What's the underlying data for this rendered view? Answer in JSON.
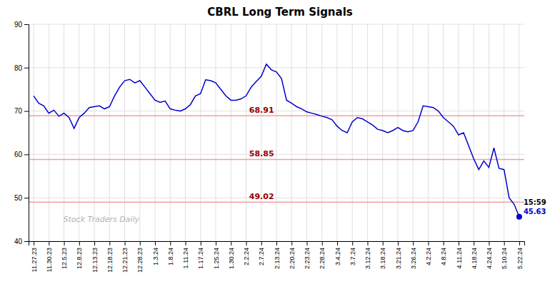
{
  "chart_data": {
    "type": "line",
    "title": "CBRL Long Term Signals",
    "categories": [
      "11.27.23",
      null,
      null,
      "11.30.23",
      null,
      null,
      "12.5.23",
      null,
      null,
      "12.8.23",
      null,
      null,
      "12.13.23",
      null,
      null,
      "12.18.23",
      null,
      null,
      "12.21.23",
      null,
      null,
      "12.28.23",
      null,
      null,
      "1.3.24",
      null,
      null,
      "1.8.24",
      null,
      null,
      "1.11.24",
      null,
      null,
      "1.17.24",
      null,
      null,
      "1.25.24",
      null,
      null,
      "1.30.24",
      null,
      null,
      "2.2.24",
      null,
      null,
      "2.7.24",
      null,
      null,
      "2.13.24",
      null,
      null,
      "2.20.24",
      null,
      null,
      "2.23.24",
      null,
      null,
      "2.28.24",
      null,
      null,
      "3.4.24",
      null,
      null,
      "3.7.24",
      null,
      null,
      "3.12.24",
      null,
      null,
      "3.18.24",
      null,
      null,
      "3.21.24",
      null,
      null,
      "3.26.24",
      null,
      null,
      "4.2.24",
      null,
      null,
      "4.8.24",
      null,
      null,
      "4.11.24",
      null,
      null,
      "4.18.24",
      null,
      null,
      "4.24.24",
      null,
      null,
      "5.10.24",
      null,
      null,
      "5.22.24"
    ],
    "values": [
      73.5,
      71.8,
      71.2,
      69.5,
      70.2,
      68.8,
      69.5,
      68.5,
      66.0,
      68.5,
      69.5,
      70.8,
      71.0,
      71.2,
      70.5,
      71.0,
      73.5,
      75.5,
      77.0,
      77.3,
      76.5,
      77.0,
      75.5,
      74.0,
      72.5,
      72.0,
      72.3,
      70.5,
      70.2,
      70.0,
      70.5,
      71.5,
      73.5,
      74.0,
      77.2,
      77.0,
      76.5,
      75.0,
      73.5,
      72.5,
      72.5,
      72.8,
      73.5,
      75.5,
      76.8,
      78.0,
      80.8,
      79.5,
      79.0,
      77.5,
      72.5,
      71.8,
      71.0,
      70.5,
      69.8,
      69.5,
      69.2,
      68.8,
      68.5,
      68.0,
      66.5,
      65.5,
      65.0,
      67.5,
      68.5,
      68.2,
      67.5,
      66.8,
      65.8,
      65.5,
      65.0,
      65.5,
      66.2,
      65.5,
      65.2,
      65.5,
      67.5,
      71.2,
      71.0,
      70.8,
      70.0,
      68.5,
      67.5,
      66.5,
      64.5,
      65.0,
      62.0,
      59.0,
      56.5,
      58.5,
      57.0,
      61.5,
      56.8,
      56.5,
      50.0,
      48.5,
      45.63
    ],
    "color": "#0000cc",
    "hlines": [
      {
        "value": 68.91,
        "color": "#f4a0a0",
        "label_color": "#990000"
      },
      {
        "value": 58.85,
        "color": "#f4a0a0",
        "label_color": "#990000"
      },
      {
        "value": 49.02,
        "color": "#f4a0a0",
        "label_color": "#990000"
      }
    ],
    "annotations": [
      "15:59",
      "Stock Traders Daily"
    ],
    "ylim": [
      40,
      90
    ],
    "yticks": [
      40,
      50,
      60,
      70,
      80,
      90
    ],
    "grid": true
  }
}
